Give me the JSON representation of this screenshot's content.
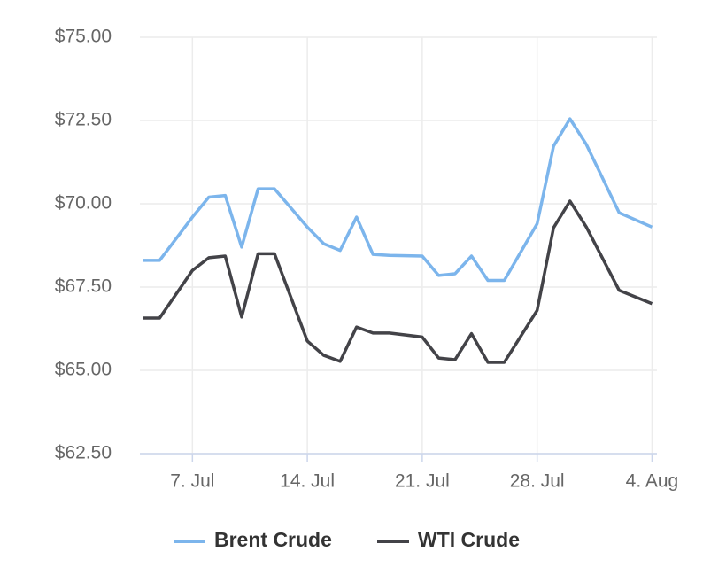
{
  "chart_data": {
    "type": "line",
    "x": [
      4,
      5,
      7,
      8,
      9,
      10,
      11,
      12,
      14,
      15,
      16,
      17,
      18,
      19,
      21,
      22,
      23,
      24,
      25,
      26,
      28,
      29,
      30,
      31,
      33,
      35
    ],
    "series": [
      {
        "name": "Brent Crude",
        "color": "#7cb5ec",
        "values": [
          68.3,
          68.3,
          69.6,
          70.2,
          70.25,
          68.7,
          70.45,
          70.45,
          69.3,
          68.8,
          68.6,
          69.6,
          68.48,
          68.45,
          68.43,
          67.85,
          67.9,
          68.43,
          67.7,
          67.7,
          69.4,
          71.73,
          72.55,
          71.78,
          69.73,
          69.3
        ]
      },
      {
        "name": "WTI Crude",
        "color": "#434348",
        "values": [
          66.57,
          66.57,
          68.0,
          68.38,
          68.43,
          66.6,
          68.5,
          68.5,
          65.88,
          65.45,
          65.27,
          66.3,
          66.12,
          66.12,
          66.0,
          65.37,
          65.32,
          66.1,
          65.24,
          65.24,
          66.8,
          69.28,
          70.08,
          69.3,
          67.4,
          67.0
        ]
      }
    ],
    "xlim": [
      3.8,
      35.3
    ],
    "xticks": [
      {
        "value": 7,
        "label": "7. Jul"
      },
      {
        "value": 14,
        "label": "14. Jul"
      },
      {
        "value": 21,
        "label": "21. Jul"
      },
      {
        "value": 28,
        "label": "28. Jul"
      },
      {
        "value": 35,
        "label": "4. Aug"
      }
    ],
    "ylim": [
      62.5,
      75
    ],
    "yticks": [
      {
        "value": 62.5,
        "label": "$62.50"
      },
      {
        "value": 65,
        "label": "$65.00"
      },
      {
        "value": 67.5,
        "label": "$67.50"
      },
      {
        "value": 70,
        "label": "$70.00"
      },
      {
        "value": 72.5,
        "label": "$72.50"
      },
      {
        "value": 75,
        "label": "$75.00"
      }
    ],
    "grid": true
  }
}
